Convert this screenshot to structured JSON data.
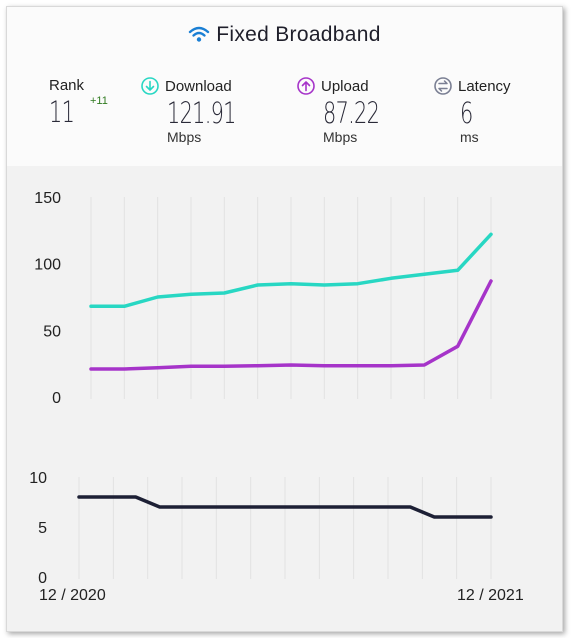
{
  "header": {
    "title": "Fixed Broadband",
    "title_icon": "wifi-icon"
  },
  "metrics": {
    "rank": {
      "label": "Rank",
      "value": "11",
      "delta": "+11"
    },
    "download": {
      "label": "Download",
      "value": "121.91",
      "unit": "Mbps",
      "icon": "download-arrow-icon",
      "color": "#28d7c3"
    },
    "upload": {
      "label": "Upload",
      "value": "87.22",
      "unit": "Mbps",
      "icon": "upload-arrow-icon",
      "color": "#a634c9"
    },
    "latency": {
      "label": "Latency",
      "value": "6",
      "unit": "ms",
      "icon": "latency-arrows-icon",
      "color": "#7a7f93"
    }
  },
  "x_start_label": "12 / 2020",
  "x_end_label": "12 / 2021",
  "chart_data": [
    {
      "type": "line",
      "title": "",
      "xlabel": "",
      "ylabel": "",
      "x": [
        "12/2020",
        "1/2021",
        "2/2021",
        "3/2021",
        "4/2021",
        "5/2021",
        "6/2021",
        "7/2021",
        "8/2021",
        "9/2021",
        "10/2021",
        "11/2021",
        "12/2021"
      ],
      "ylim": [
        0,
        150
      ],
      "yticks": [
        0,
        50,
        100,
        150
      ],
      "grid": "vertical",
      "series": [
        {
          "name": "Download",
          "color": "#28d7c3",
          "values": [
            68,
            68,
            75,
            77,
            78,
            84,
            85,
            84,
            85,
            89,
            92,
            95,
            122
          ]
        },
        {
          "name": "Upload",
          "color": "#a634c9",
          "values": [
            21,
            21,
            22,
            23,
            23,
            23.5,
            24,
            23.5,
            23.5,
            23.5,
            24,
            38,
            87
          ]
        }
      ]
    },
    {
      "type": "line",
      "title": "",
      "xlabel": "",
      "ylabel": "",
      "x": [
        "12/2020",
        "1/2021",
        "2/2021",
        "3/2021",
        "4/2021",
        "5/2021",
        "6/2021",
        "7/2021",
        "8/2021",
        "9/2021",
        "10/2021",
        "11/2021",
        "12/2021"
      ],
      "ylim": [
        0,
        10
      ],
      "yticks": [
        0,
        5,
        10
      ],
      "grid": "vertical",
      "series": [
        {
          "name": "Latency",
          "color": "#1d2035",
          "values": [
            8,
            8,
            7,
            7,
            7,
            7,
            7,
            7,
            7,
            7,
            6,
            6,
            6
          ]
        }
      ]
    }
  ]
}
